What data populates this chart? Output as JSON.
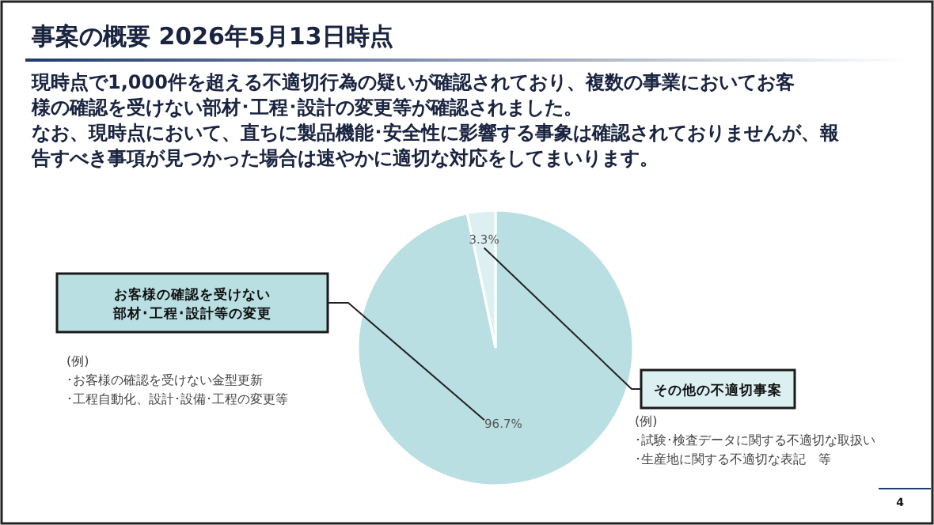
{
  "chart_data": {
    "type": "pie",
    "title": "事案の概要 2026年5月13日時点",
    "subtitle": "現時点で1,000件を超える不適切行為の疑いが確認されており、複数の事業においてお客様の確認を受けない部材･工程･設計の変更等が確認されました。",
    "categories": [
      "お客様の確認を受けない部材･工程･設計等の変更",
      "その他の不適切事案"
    ],
    "values": [
      96.7,
      3.3
    ],
    "colors": [
      "#b9dfe3",
      "#dcf0f2"
    ],
    "value_labels": [
      "96.7%",
      "3.3%"
    ],
    "annotations": [
      "なお、現時点において、直ちに製品機能･安全性に影響する事象は確認されておりませんが、報告すべき事項が見つかった場合は速やかに適切な対応をしてまいります。",
      "(例)",
      "･お客様の確認を受けない金型更新",
      "･工程自動化、設計･設備･工程の変更等",
      "(例)",
      "･試験･検査データに関する不適切な取扱い",
      "･生産地に関する不適切な表記　等",
      "4"
    ]
  }
}
